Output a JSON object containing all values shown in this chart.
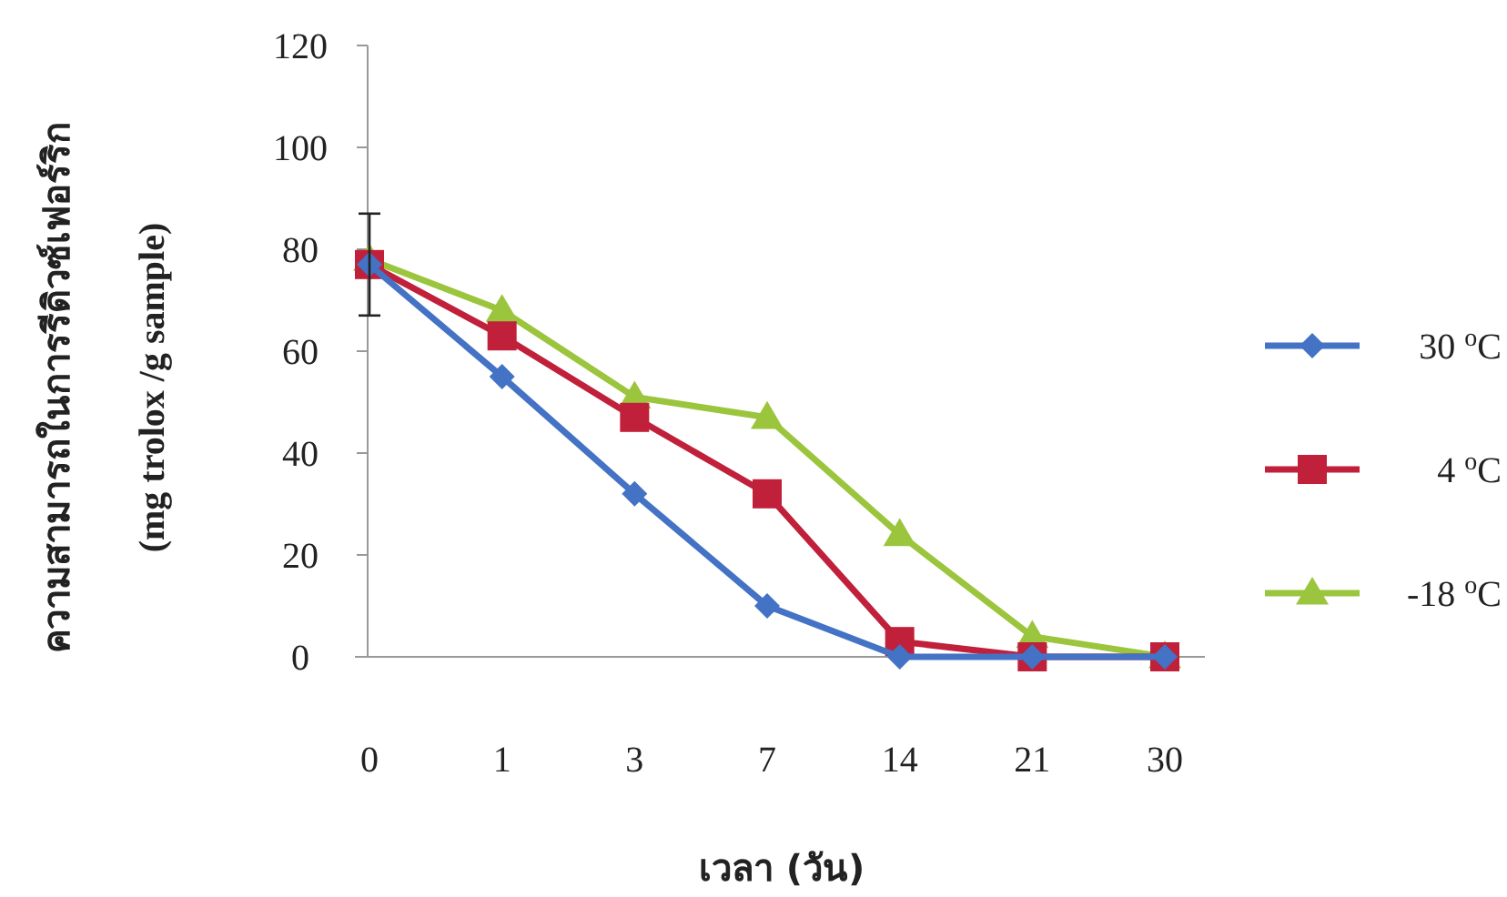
{
  "chart_data": {
    "type": "line",
    "xlabel": "เวลา (วัน)",
    "ylabel": "ความสามารถในการรีดิวซ์เฟอร์ริก\n(mg trolox /g sample)",
    "categories": [
      "0",
      "1",
      "3",
      "7",
      "14",
      "21",
      "30"
    ],
    "ylim": [
      0,
      120
    ],
    "yticks": [
      0,
      20,
      40,
      60,
      80,
      100,
      120
    ],
    "grid": false,
    "legend": "right",
    "series": [
      {
        "name": "30 $^{o}$C",
        "color": "#4472c4",
        "marker": "diamond",
        "values": [
          77,
          55,
          32,
          10,
          0,
          0,
          0
        ],
        "errors": [
          10,
          null,
          null,
          null,
          null,
          null,
          null
        ]
      },
      {
        "name": "4 $^{o}$C",
        "color": "#c0203a",
        "marker": "square",
        "values": [
          77,
          63,
          47,
          32,
          3,
          0,
          0
        ]
      },
      {
        "name": "-18 $^{o}$C",
        "color": "#9bc53d",
        "marker": "triangle",
        "values": [
          78,
          68,
          51,
          47,
          24,
          4,
          0
        ]
      }
    ]
  }
}
